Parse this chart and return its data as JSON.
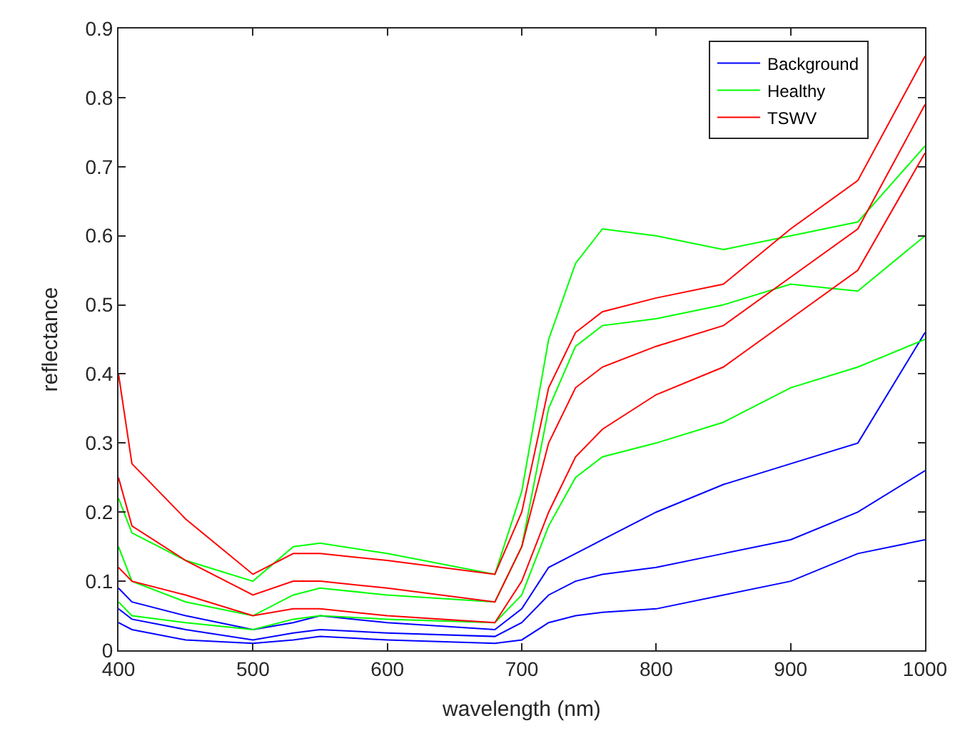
{
  "chart_data": {
    "type": "line",
    "xlabel": "wavelength (nm)",
    "ylabel": "reflectance",
    "x": [
      400,
      410,
      450,
      500,
      530,
      550,
      600,
      680,
      700,
      720,
      740,
      760,
      800,
      850,
      900,
      950,
      1000
    ],
    "xlim": [
      400,
      1000
    ],
    "xticks": [
      400,
      500,
      600,
      700,
      800,
      900,
      1000
    ],
    "ylim": [
      0,
      0.9
    ],
    "yticks": [
      0,
      0.1,
      0.2,
      0.3,
      0.4,
      0.5,
      0.6,
      0.7,
      0.8,
      0.9
    ],
    "legend": "top right",
    "marker": "none",
    "line_style": "solid",
    "series": [
      {
        "name": "Background",
        "color": "#0000ff",
        "values": [
          0.04,
          0.03,
          0.015,
          0.01,
          0.015,
          0.02,
          0.015,
          0.01,
          0.015,
          0.04,
          0.05,
          0.055,
          0.06,
          0.08,
          0.1,
          0.14,
          0.16
        ]
      },
      {
        "color": "#0000ff",
        "values": [
          0.06,
          0.045,
          0.03,
          0.015,
          0.025,
          0.03,
          0.025,
          0.02,
          0.04,
          0.08,
          0.1,
          0.11,
          0.12,
          0.14,
          0.16,
          0.2,
          0.26
        ]
      },
      {
        "color": "#0000ff",
        "values": [
          0.09,
          0.07,
          0.05,
          0.03,
          0.04,
          0.05,
          0.04,
          0.03,
          0.06,
          0.12,
          0.14,
          0.16,
          0.2,
          0.24,
          0.27,
          0.3,
          0.46
        ]
      },
      {
        "name": "Healthy",
        "color": "#00ff00",
        "values": [
          0.07,
          0.05,
          0.04,
          0.03,
          0.045,
          0.05,
          0.045,
          0.04,
          0.08,
          0.18,
          0.25,
          0.28,
          0.3,
          0.33,
          0.38,
          0.41,
          0.45
        ]
      },
      {
        "color": "#00ff00",
        "values": [
          0.15,
          0.1,
          0.07,
          0.05,
          0.08,
          0.09,
          0.08,
          0.07,
          0.15,
          0.35,
          0.44,
          0.47,
          0.48,
          0.5,
          0.53,
          0.52,
          0.6
        ]
      },
      {
        "color": "#00ff00",
        "values": [
          0.22,
          0.17,
          0.13,
          0.1,
          0.15,
          0.155,
          0.14,
          0.11,
          0.23,
          0.45,
          0.56,
          0.61,
          0.6,
          0.58,
          0.6,
          0.62,
          0.73
        ]
      },
      {
        "name": "TSWV",
        "color": "#ff0000",
        "values": [
          0.12,
          0.1,
          0.08,
          0.05,
          0.06,
          0.06,
          0.05,
          0.04,
          0.1,
          0.2,
          0.28,
          0.32,
          0.37,
          0.41,
          0.48,
          0.55,
          0.72
        ]
      },
      {
        "color": "#ff0000",
        "values": [
          0.25,
          0.18,
          0.13,
          0.08,
          0.1,
          0.1,
          0.09,
          0.07,
          0.15,
          0.3,
          0.38,
          0.41,
          0.44,
          0.47,
          0.54,
          0.61,
          0.79
        ]
      },
      {
        "color": "#ff0000",
        "values": [
          0.4,
          0.27,
          0.19,
          0.11,
          0.14,
          0.14,
          0.13,
          0.11,
          0.2,
          0.38,
          0.46,
          0.49,
          0.51,
          0.53,
          0.61,
          0.68,
          0.86
        ]
      }
    ]
  }
}
